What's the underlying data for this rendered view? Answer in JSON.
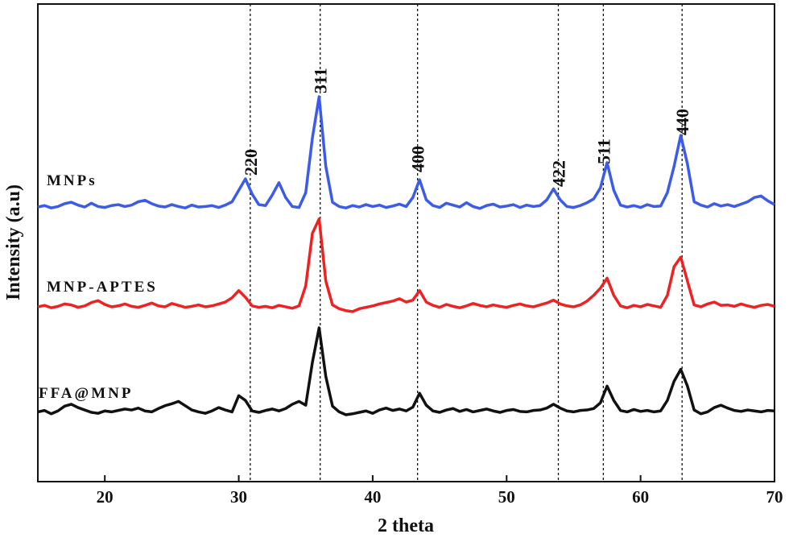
{
  "chart_data": {
    "type": "line",
    "x_label": "2 theta",
    "y_label": "Intensity (a.u)",
    "xlim": [
      15,
      70
    ],
    "ylim": [
      0,
      100
    ],
    "xticks": [
      20,
      30,
      40,
      50,
      60,
      70
    ],
    "x": [
      15,
      15.5,
      16,
      16.5,
      17,
      17.5,
      18,
      18.5,
      19,
      19.5,
      20,
      20.5,
      21,
      21.5,
      22,
      22.5,
      23,
      23.5,
      24,
      24.5,
      25,
      25.5,
      26,
      26.5,
      27,
      27.5,
      28,
      28.5,
      29,
      29.5,
      30,
      30.5,
      31,
      31.5,
      32,
      32.5,
      33,
      33.5,
      34,
      34.5,
      35,
      35.5,
      36,
      36.5,
      37,
      37.5,
      38,
      38.5,
      39,
      39.5,
      40,
      40.5,
      41,
      41.5,
      42,
      42.5,
      43,
      43.5,
      44,
      44.5,
      45,
      45.5,
      46,
      46.5,
      47,
      47.5,
      48,
      48.5,
      49,
      49.5,
      50,
      50.5,
      51,
      51.5,
      52,
      52.5,
      53,
      53.5,
      54,
      54.5,
      55,
      55.5,
      56,
      56.5,
      57,
      57.5,
      58,
      58.5,
      59,
      59.5,
      60,
      60.5,
      61,
      61.5,
      62,
      62.5,
      63,
      63.5,
      64,
      64.5,
      65,
      65.5,
      66,
      66.5,
      67,
      67.5,
      68,
      68.5,
      69,
      69.5,
      70
    ],
    "series": [
      {
        "name": "MNPs",
        "color": "#3b5be8",
        "values": [
          57.5,
          57.8,
          57.3,
          57.6,
          58.2,
          58.5,
          57.9,
          57.5,
          58.3,
          57.6,
          57.4,
          57.8,
          58.0,
          57.6,
          57.9,
          58.6,
          58.9,
          58.2,
          57.7,
          57.5,
          58.0,
          57.6,
          57.3,
          57.9,
          57.5,
          57.6,
          57.8,
          57.4,
          57.9,
          58.6,
          61.0,
          63.4,
          60.2,
          58.0,
          57.8,
          60.0,
          62.6,
          59.5,
          57.6,
          57.4,
          60.5,
          72.0,
          80.6,
          66.0,
          58.5,
          57.6,
          57.3,
          57.8,
          57.5,
          58.0,
          57.6,
          57.9,
          57.4,
          57.7,
          58.1,
          57.6,
          59.5,
          63.2,
          59.0,
          57.8,
          57.4,
          58.3,
          57.9,
          57.5,
          58.4,
          57.6,
          57.2,
          57.8,
          58.1,
          57.5,
          57.7,
          58.0,
          57.4,
          57.9,
          57.6,
          57.8,
          59.0,
          61.3,
          59.0,
          57.6,
          57.4,
          57.8,
          58.4,
          59.2,
          61.5,
          66.8,
          61.0,
          57.9,
          57.5,
          57.8,
          57.4,
          58.0,
          57.6,
          57.7,
          60.5,
          66.0,
          72.5,
          66.5,
          58.6,
          57.9,
          57.5,
          58.2,
          57.7,
          58.0,
          57.6,
          58.1,
          58.6,
          59.5,
          59.8,
          58.8,
          58.0
        ]
      },
      {
        "name": "MNP-APTES",
        "color": "#ee2222",
        "values": [
          36.6,
          36.9,
          36.4,
          36.7,
          37.2,
          37.0,
          36.5,
          36.8,
          37.5,
          37.9,
          37.1,
          36.6,
          36.8,
          37.2,
          36.7,
          36.5,
          36.9,
          37.4,
          36.8,
          36.6,
          37.3,
          36.9,
          36.5,
          36.7,
          37.0,
          36.6,
          36.8,
          37.2,
          37.6,
          38.5,
          40.0,
          38.6,
          36.8,
          36.5,
          36.7,
          36.4,
          36.9,
          36.6,
          36.3,
          36.8,
          41.0,
          52.0,
          55.0,
          42.0,
          37.0,
          36.2,
          35.8,
          35.6,
          36.2,
          36.5,
          36.8,
          37.2,
          37.5,
          37.8,
          38.3,
          37.6,
          38.0,
          40.0,
          37.6,
          36.9,
          36.5,
          37.1,
          36.7,
          36.4,
          36.8,
          37.3,
          36.9,
          36.6,
          37.0,
          36.7,
          36.5,
          36.9,
          37.2,
          36.8,
          36.6,
          37.0,
          37.4,
          38.0,
          37.2,
          36.8,
          36.6,
          37.0,
          37.8,
          39.0,
          40.5,
          42.6,
          39.0,
          36.8,
          36.4,
          36.9,
          36.6,
          37.1,
          36.8,
          36.5,
          39.0,
          45.0,
          47.0,
          42.0,
          37.0,
          36.6,
          37.2,
          37.6,
          36.9,
          37.0,
          36.7,
          37.2,
          36.8,
          36.5,
          36.9,
          37.1,
          36.7
        ]
      },
      {
        "name": "FFA@MNP",
        "color": "#111111",
        "values": [
          14.6,
          14.9,
          14.2,
          14.8,
          15.8,
          16.2,
          15.5,
          15.0,
          14.5,
          14.3,
          14.8,
          14.6,
          14.9,
          15.2,
          15.0,
          15.4,
          14.8,
          14.6,
          15.3,
          15.9,
          16.3,
          16.8,
          15.9,
          15.0,
          14.6,
          14.3,
          14.8,
          15.5,
          15.0,
          14.6,
          18.0,
          17.0,
          14.8,
          14.5,
          14.9,
          15.2,
          14.8,
          15.3,
          16.2,
          16.8,
          16.0,
          25.0,
          32.2,
          22.0,
          15.8,
          14.6,
          14.0,
          14.2,
          14.5,
          14.8,
          14.3,
          15.0,
          15.4,
          14.9,
          15.2,
          14.8,
          15.6,
          18.5,
          16.0,
          14.8,
          14.5,
          15.0,
          15.3,
          14.7,
          15.1,
          14.6,
          14.9,
          15.2,
          14.8,
          14.5,
          14.9,
          15.1,
          14.7,
          14.6,
          14.9,
          15.0,
          15.4,
          16.2,
          15.4,
          14.8,
          14.6,
          14.9,
          15.0,
          15.3,
          16.5,
          20.0,
          17.0,
          14.9,
          14.6,
          15.1,
          14.7,
          14.9,
          14.6,
          14.8,
          17.0,
          21.0,
          23.5,
          20.0,
          15.0,
          14.2,
          14.6,
          15.5,
          16.0,
          15.4,
          14.9,
          14.7,
          15.0,
          14.8,
          14.6,
          14.9,
          14.8
        ]
      }
    ],
    "peaks": [
      {
        "x": 30.86,
        "label": "220"
      },
      {
        "x": 36.08,
        "label": "311"
      },
      {
        "x": 43.35,
        "label": "400"
      },
      {
        "x": 53.86,
        "label": "422"
      },
      {
        "x": 57.22,
        "label": "511"
      },
      {
        "x": 63.1,
        "label": "440"
      }
    ]
  }
}
